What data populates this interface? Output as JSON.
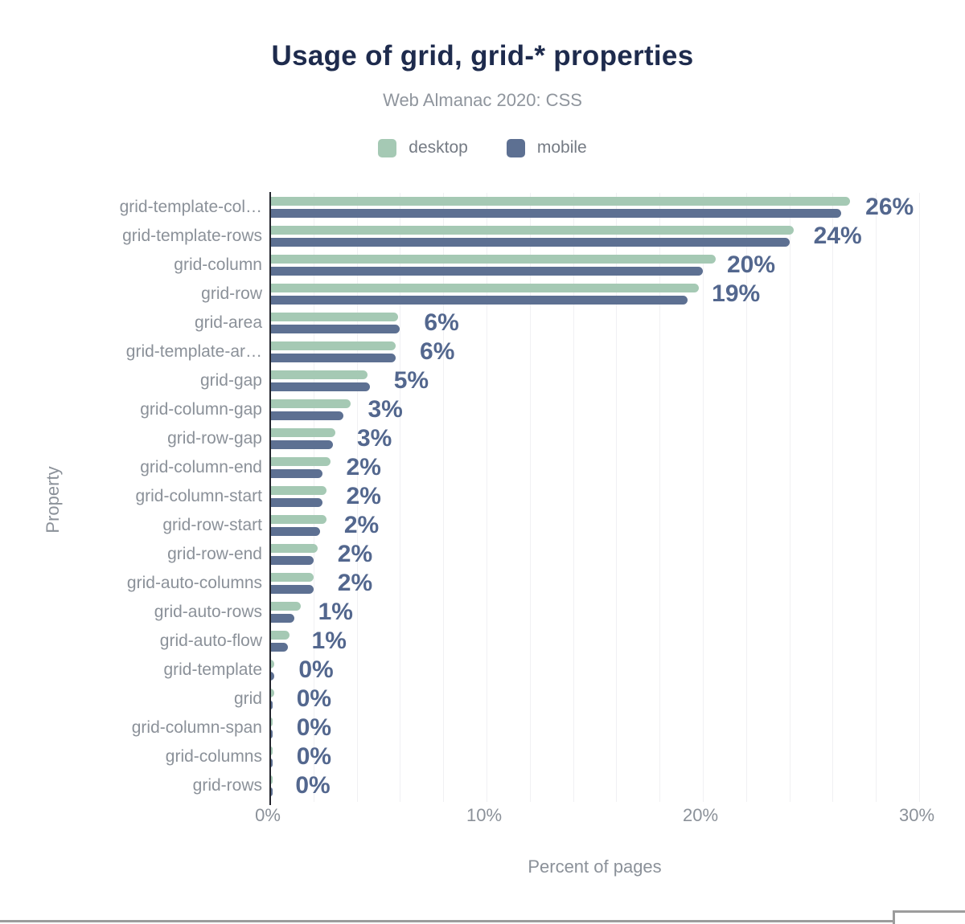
{
  "chart_data": {
    "type": "bar",
    "orientation": "horizontal",
    "title": "Usage of grid, grid-* properties",
    "subtitle": "Web Almanac 2020: CSS",
    "xlabel": "Percent of pages",
    "ylabel": "Property",
    "xlim": [
      0,
      30.7
    ],
    "grid_step_pct": 2,
    "grid_on": true,
    "legend_position": "top-center",
    "xticks": [
      {
        "label": "0%",
        "value": 0
      },
      {
        "label": "10%",
        "value": 10
      },
      {
        "label": "20%",
        "value": 20
      },
      {
        "label": "30%",
        "value": 30
      }
    ],
    "categories": [
      "grid-template-col…",
      "grid-template-rows",
      "grid-column",
      "grid-row",
      "grid-area",
      "grid-template-ar…",
      "grid-gap",
      "grid-column-gap",
      "grid-row-gap",
      "grid-column-end",
      "grid-column-start",
      "grid-row-start",
      "grid-row-end",
      "grid-auto-columns",
      "grid-auto-rows",
      "grid-auto-flow",
      "grid-template",
      "grid",
      "grid-column-span",
      "grid-columns",
      "grid-rows"
    ],
    "series": [
      {
        "name": "desktop",
        "color": "#a5c9b4",
        "values": [
          26.8,
          24.2,
          20.6,
          19.8,
          5.9,
          5.8,
          4.5,
          3.7,
          3.0,
          2.8,
          2.6,
          2.6,
          2.2,
          2.0,
          1.4,
          0.9,
          0.2,
          0.2,
          0.1,
          0.1,
          0.1
        ]
      },
      {
        "name": "mobile",
        "color": "#5d7092",
        "values": [
          26.4,
          24.0,
          20.0,
          19.3,
          6.0,
          5.8,
          4.6,
          3.4,
          2.9,
          2.4,
          2.4,
          2.3,
          2.0,
          2.0,
          1.1,
          0.8,
          0.2,
          0.1,
          0.1,
          0.1,
          0.05
        ]
      }
    ],
    "value_labels": [
      "26%",
      "24%",
      "20%",
      "19%",
      "6%",
      "6%",
      "5%",
      "3%",
      "3%",
      "2%",
      "2%",
      "2%",
      "2%",
      "2%",
      "1%",
      "1%",
      "0%",
      "0%",
      "0%",
      "0%",
      "0%"
    ]
  },
  "colors": {
    "title": "#1e2b4d",
    "subtitle": "#8f959d",
    "axis_text": "#8b9199",
    "category_text": "#8b9199",
    "value_label": "#53678e",
    "axis_line": "#23252d",
    "gridline": "#f0f0f3",
    "frame_border": "#9c9c9c"
  }
}
